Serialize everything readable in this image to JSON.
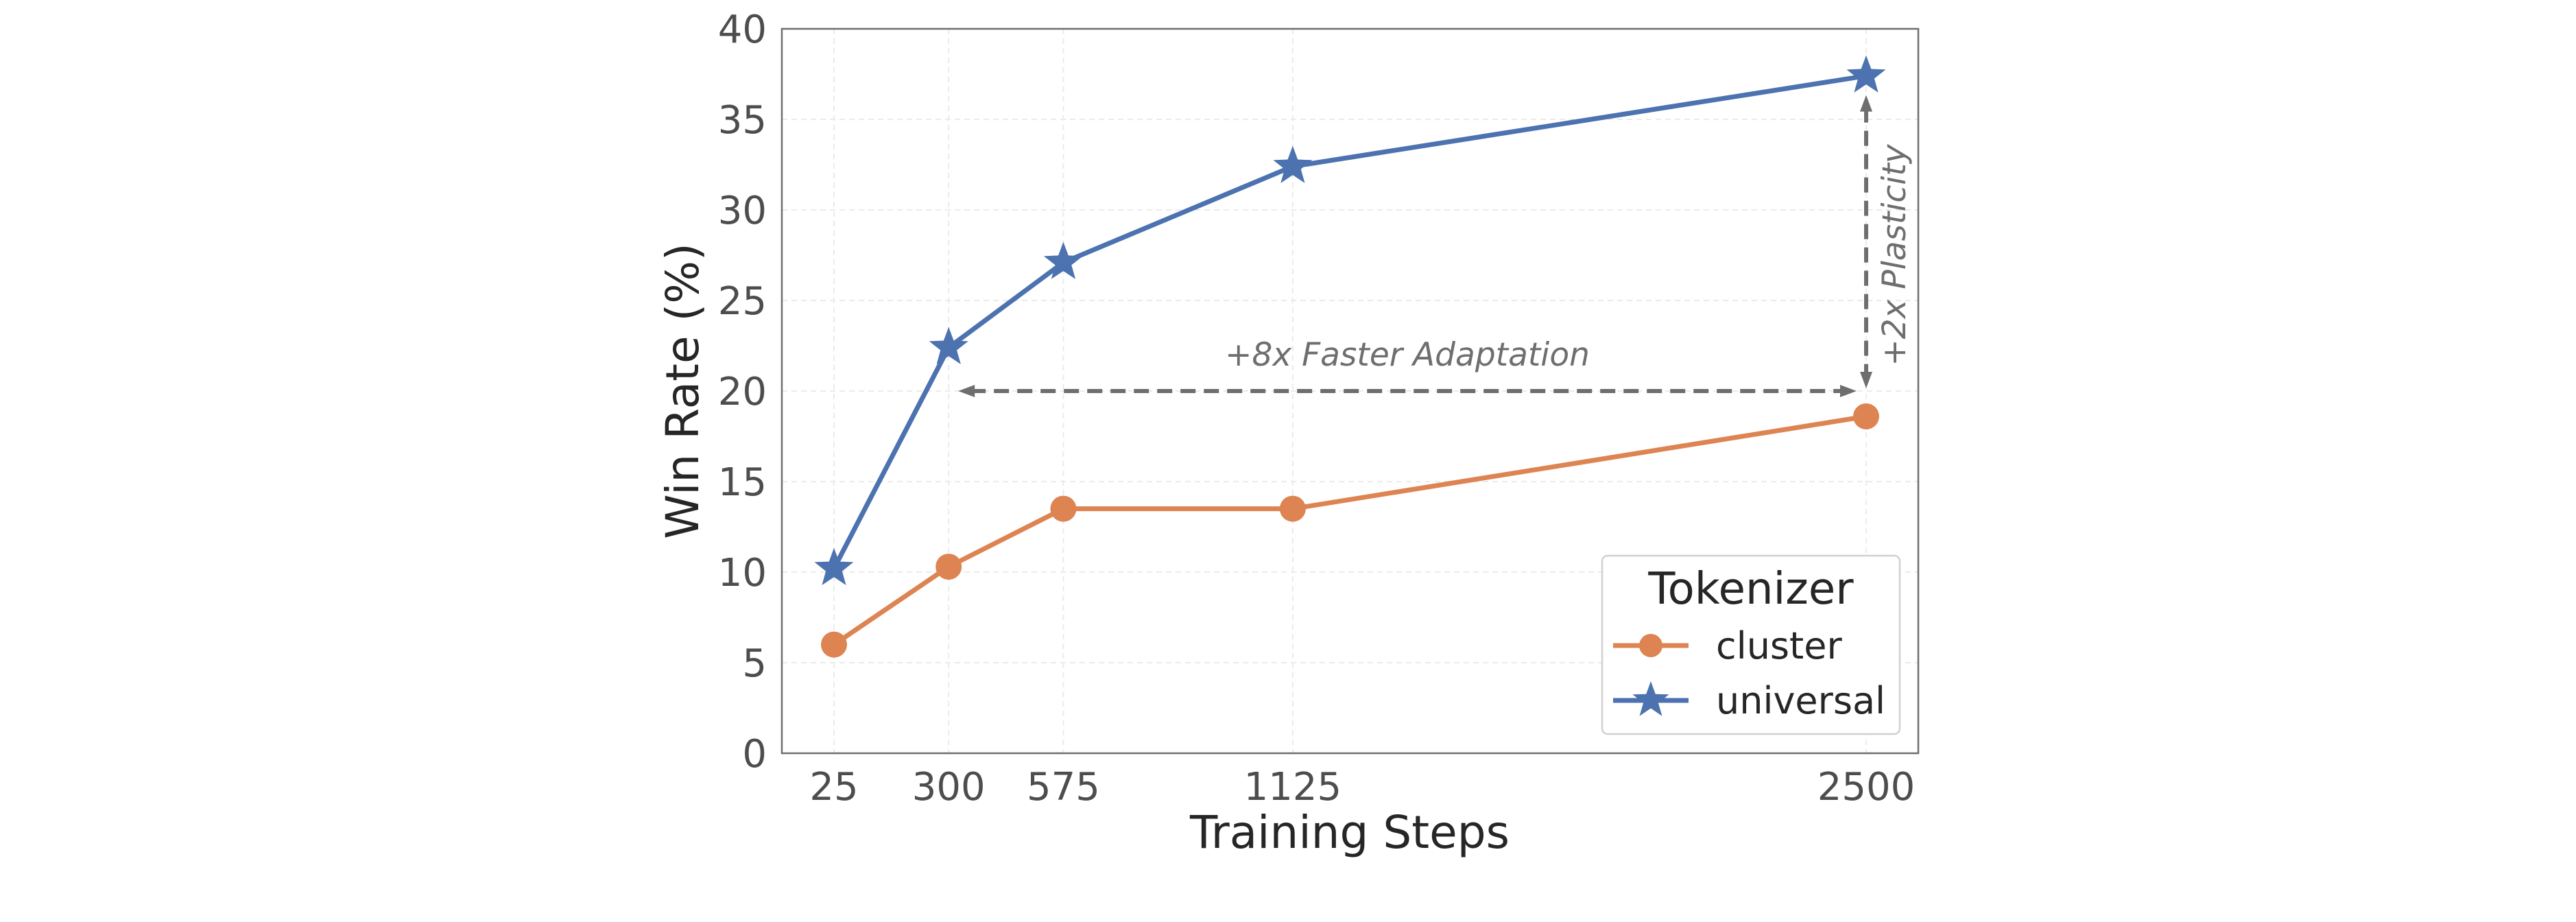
{
  "chart_data": {
    "type": "line",
    "x": [
      25,
      300,
      575,
      1125,
      2500
    ],
    "xticks": [
      25,
      300,
      575,
      1125,
      2500
    ],
    "xlim": [
      -100,
      2625
    ],
    "ylim": [
      0,
      40
    ],
    "yticks": [
      0,
      5,
      10,
      15,
      20,
      25,
      30,
      35,
      40
    ],
    "xlabel": "Training Steps",
    "ylabel": "Win Rate (%)",
    "grid": true,
    "legend": {
      "title": "Tokenizer",
      "placement": "bottom-right"
    },
    "series": [
      {
        "name": "cluster",
        "values": [
          6.0,
          10.3,
          13.5,
          13.5,
          18.6
        ],
        "color": "#dd8452",
        "marker": "circle"
      },
      {
        "name": "universal",
        "values": [
          10.2,
          22.4,
          27.1,
          32.4,
          37.4
        ],
        "color": "#4c72b0",
        "marker": "star"
      }
    ],
    "annotations": [
      {
        "text": "+8x Faster Adaptation",
        "type": "horizontal-arrow",
        "from": [
          300,
          20
        ],
        "to": [
          2500,
          20
        ]
      },
      {
        "text": "+2x Plasticity",
        "type": "vertical-arrow",
        "from": [
          2500,
          20
        ],
        "to": [
          2500,
          37.4
        ]
      }
    ]
  }
}
